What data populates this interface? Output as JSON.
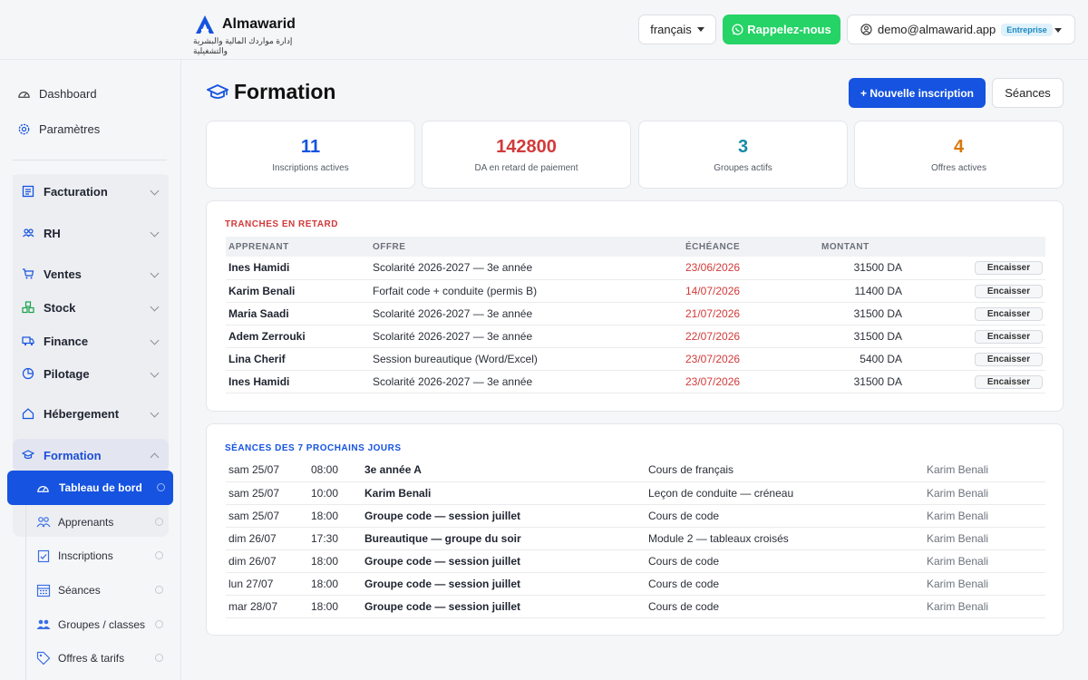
{
  "header": {
    "brand": "Almawarid",
    "tagline": "إدارة مواردك المالية والبشرية والتشغيلية",
    "language": "français",
    "callback_label": "Rappelez-nous",
    "user_email": "demo@almawarid.app",
    "plan_badge": "Entreprise"
  },
  "sidebar": {
    "top_items": [
      {
        "label": "Dashboard",
        "icon": "gauge-icon"
      },
      {
        "label": "Paramètres",
        "icon": "gear-icon"
      }
    ],
    "groups": [
      {
        "label": "Facturation",
        "icon": "invoice-icon"
      },
      {
        "label": "RH",
        "icon": "people-icon"
      },
      {
        "label": "Ventes",
        "icon": "cart-icon"
      },
      {
        "label": "Stock",
        "icon": "boxes-icon"
      },
      {
        "label": "Finance",
        "icon": "truck-icon"
      },
      {
        "label": "Pilotage",
        "icon": "pie-icon"
      },
      {
        "label": "Hébergement",
        "icon": "house-icon"
      }
    ],
    "active_group": "Formation",
    "sub_items": [
      {
        "label": "Tableau de bord",
        "icon": "gauge-icon",
        "active": true
      },
      {
        "label": "Apprenants",
        "icon": "people-icon"
      },
      {
        "label": "Inscriptions",
        "icon": "clipboard-check-icon"
      },
      {
        "label": "Séances",
        "icon": "calendar-icon"
      },
      {
        "label": "Groupes / classes",
        "icon": "group-icon"
      },
      {
        "label": "Offres & tarifs",
        "icon": "tag-icon"
      }
    ]
  },
  "main": {
    "title": "Formation",
    "new_button": "+ Nouvelle inscription",
    "seances_button": "Séances",
    "stats": [
      {
        "value": "11",
        "label": "Inscriptions actives",
        "color": "#1553e0"
      },
      {
        "value": "142800",
        "label": "DA en retard de paiement",
        "color": "#d23a3a"
      },
      {
        "value": "3",
        "label": "Groupes actifs",
        "color": "#168aa6"
      },
      {
        "value": "4",
        "label": "Offres actives",
        "color": "#d9770c"
      }
    ],
    "late": {
      "title": "TRANCHES EN RETARD",
      "headers": [
        "APPRENANT",
        "OFFRE",
        "ÉCHÉANCE",
        "MONTANT"
      ],
      "action_label": "Encaisser",
      "rows": [
        {
          "name": "Ines Hamidi",
          "offer": "Scolarité 2026-2027 — 3e année",
          "due": "23/06/2026",
          "amount": "31500 DA"
        },
        {
          "name": "Karim Benali",
          "offer": "Forfait code + conduite (permis B)",
          "due": "14/07/2026",
          "amount": "11400 DA"
        },
        {
          "name": "Maria Saadi",
          "offer": "Scolarité 2026-2027 — 3e année",
          "due": "21/07/2026",
          "amount": "31500 DA"
        },
        {
          "name": "Adem Zerrouki",
          "offer": "Scolarité 2026-2027 — 3e année",
          "due": "22/07/2026",
          "amount": "31500 DA"
        },
        {
          "name": "Lina Cherif",
          "offer": "Session bureautique (Word/Excel)",
          "due": "23/07/2026",
          "amount": "5400 DA"
        },
        {
          "name": "Ines Hamidi",
          "offer": "Scolarité 2026-2027 — 3e année",
          "due": "23/07/2026",
          "amount": "31500 DA"
        }
      ]
    },
    "sessions": {
      "title": "SÉANCES DES 7 PROCHAINS JOURS",
      "rows": [
        {
          "day": "sam 25/07",
          "time": "08:00",
          "group": "3e année A",
          "topic": "Cours de français",
          "teacher": "Karim Benali"
        },
        {
          "day": "sam 25/07",
          "time": "10:00",
          "group": "Karim Benali",
          "topic": "Leçon de conduite — créneau",
          "teacher": "Karim Benali"
        },
        {
          "day": "sam 25/07",
          "time": "18:00",
          "group": "Groupe code — session juillet",
          "topic": "Cours de code",
          "teacher": "Karim Benali"
        },
        {
          "day": "dim 26/07",
          "time": "17:30",
          "group": "Bureautique — groupe du soir",
          "topic": "Module 2 — tableaux croisés",
          "teacher": "Karim Benali"
        },
        {
          "day": "dim 26/07",
          "time": "18:00",
          "group": "Groupe code — session juillet",
          "topic": "Cours de code",
          "teacher": "Karim Benali"
        },
        {
          "day": "lun 27/07",
          "time": "18:00",
          "group": "Groupe code — session juillet",
          "topic": "Cours de code",
          "teacher": "Karim Benali"
        },
        {
          "day": "mar 28/07",
          "time": "18:00",
          "group": "Groupe code — session juillet",
          "topic": "Cours de code",
          "teacher": "Karim Benali"
        }
      ]
    }
  }
}
